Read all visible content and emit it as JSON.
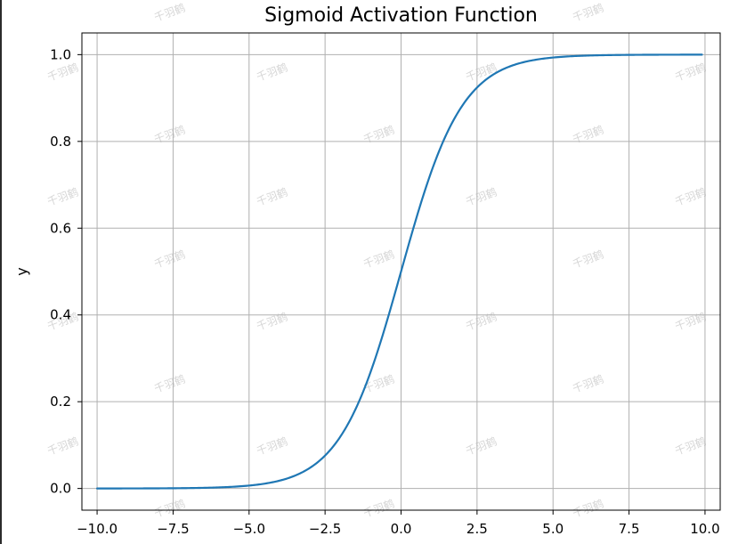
{
  "chart_data": {
    "type": "line",
    "title": "Sigmoid Activation Function",
    "xlabel": "",
    "ylabel": "y",
    "xlim": [
      -10.5,
      10.5
    ],
    "ylim": [
      -0.05,
      1.05
    ],
    "xticks": [
      -10.0,
      -7.5,
      -5.0,
      -2.5,
      0.0,
      2.5,
      5.0,
      7.5,
      10.0
    ],
    "xtick_labels": [
      "−10.0",
      "−7.5",
      "−5.0",
      "−2.5",
      "0.0",
      "2.5",
      "5.0",
      "7.5",
      "10.0"
    ],
    "yticks": [
      0.0,
      0.2,
      0.4,
      0.6,
      0.8,
      1.0
    ],
    "ytick_labels": [
      "0.0",
      "0.2",
      "0.4",
      "0.6",
      "0.8",
      "1.0"
    ],
    "grid": true,
    "series": [
      {
        "color": "#1f77b4",
        "x": [
          -10.0,
          -9.0,
          -8.0,
          -7.0,
          -6.0,
          -5.0,
          -4.5,
          -4.0,
          -3.5,
          -3.0,
          -2.5,
          -2.0,
          -1.5,
          -1.0,
          -0.5,
          0.0,
          0.5,
          1.0,
          1.5,
          2.0,
          2.5,
          3.0,
          3.5,
          4.0,
          4.5,
          5.0,
          6.0,
          7.0,
          8.0,
          9.0,
          9.9
        ],
        "y": [
          0.0,
          0.0001,
          0.0003,
          0.0009,
          0.0025,
          0.0067,
          0.011,
          0.018,
          0.0293,
          0.0474,
          0.0759,
          0.1192,
          0.1824,
          0.2689,
          0.3775,
          0.5,
          0.6225,
          0.7311,
          0.8176,
          0.8808,
          0.9241,
          0.9526,
          0.9707,
          0.982,
          0.989,
          0.9933,
          0.9975,
          0.9991,
          0.9997,
          0.9999,
          0.9999
        ]
      }
    ]
  },
  "watermark": {
    "text": "千羽鹤"
  }
}
